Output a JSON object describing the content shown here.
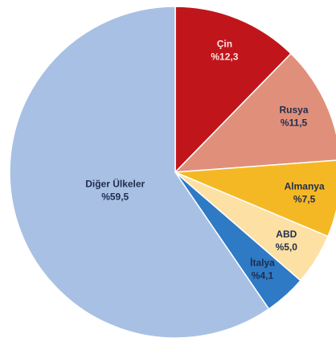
{
  "chart_data": {
    "type": "pie",
    "categories": [
      "Çin",
      "Rusya",
      "Almanya",
      "ABD",
      "İtalya",
      "Diğer Ülkeler"
    ],
    "values": [
      12.3,
      11.5,
      7.5,
      5.0,
      4.1,
      59.5
    ],
    "value_labels": [
      "%12,3",
      "%11,5",
      "%7,5",
      "%5,0",
      "%4,1",
      "%59,5"
    ],
    "colors": [
      "#c0161b",
      "#e0907a",
      "#f5b825",
      "#fde0a3",
      "#2e7ac4",
      "#a8c0e4"
    ]
  }
}
